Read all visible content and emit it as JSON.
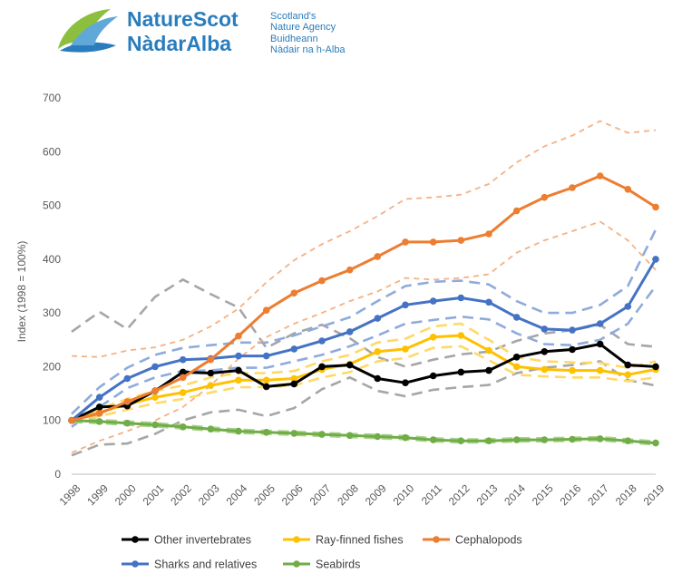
{
  "logo": {
    "name_en": "NatureScot",
    "name_gd": "NàdarAlba",
    "tag_en_1": "Scotland's",
    "tag_en_2": "Nature Agency",
    "tag_gd_1": "Buidheann",
    "tag_gd_2": "Nàdair na h-Alba",
    "colors": {
      "text": "#2a7dbd",
      "leaf_green": "#8dbf3e",
      "leaf_blue": "#2a7dbd"
    }
  },
  "chart_data": {
    "type": "line",
    "title": "",
    "xlabel": "",
    "ylabel": "Index (1998 = 100%)",
    "ylim": [
      0,
      700
    ],
    "yticks": [
      0,
      100,
      200,
      300,
      400,
      500,
      600,
      700
    ],
    "x": [
      "1998",
      "1999",
      "2000",
      "2001",
      "2002",
      "2003",
      "2004",
      "2005",
      "2006",
      "2007",
      "2008",
      "2009",
      "2010",
      "2011",
      "2012",
      "2013",
      "2014",
      "2015",
      "2016",
      "2017",
      "2018",
      "2019"
    ],
    "grid": false,
    "legend_position": "bottom",
    "series": [
      {
        "name": "Other invertebrates",
        "color": "#000000",
        "values": [
          100,
          125,
          127,
          155,
          190,
          188,
          193,
          163,
          168,
          200,
          203,
          178,
          170,
          183,
          190,
          193,
          218,
          228,
          232,
          242,
          203,
          200
        ],
        "ci_color": "#a6a6a6",
        "ci_upper": [
          265,
          302,
          270,
          330,
          362,
          335,
          310,
          235,
          262,
          278,
          253,
          218,
          200,
          213,
          223,
          228,
          248,
          262,
          268,
          278,
          242,
          237
        ],
        "ci_lower": [
          35,
          55,
          57,
          75,
          100,
          115,
          120,
          108,
          123,
          158,
          180,
          155,
          145,
          157,
          162,
          166,
          188,
          198,
          203,
          210,
          175,
          165
        ]
      },
      {
        "name": "Ray-finned fishes",
        "color": "#ffc000",
        "values": [
          100,
          115,
          130,
          143,
          152,
          165,
          175,
          175,
          178,
          195,
          205,
          228,
          233,
          255,
          258,
          230,
          200,
          195,
          193,
          193,
          185,
          195
        ],
        "ci_color": "#ffd966",
        "ci_upper": [
          103,
          122,
          140,
          155,
          165,
          180,
          188,
          188,
          192,
          210,
          222,
          245,
          252,
          275,
          280,
          250,
          218,
          210,
          208,
          207,
          198,
          210
        ],
        "ci_lower": [
          97,
          108,
          120,
          132,
          140,
          152,
          162,
          162,
          165,
          180,
          190,
          210,
          216,
          235,
          238,
          212,
          185,
          182,
          180,
          180,
          173,
          180
        ]
      },
      {
        "name": "Cephalopods",
        "color": "#ed7d31",
        "values": [
          100,
          113,
          135,
          155,
          180,
          213,
          257,
          305,
          337,
          360,
          380,
          405,
          432,
          432,
          435,
          447,
          490,
          515,
          533,
          555,
          530,
          497
        ],
        "ci_color": "#f4b183",
        "ci_upper": [
          220,
          218,
          230,
          236,
          250,
          275,
          308,
          357,
          398,
          428,
          452,
          480,
          512,
          515,
          520,
          540,
          580,
          610,
          630,
          657,
          635,
          640
        ],
        "ci_lower": [
          40,
          62,
          80,
          100,
          125,
          165,
          215,
          255,
          280,
          300,
          322,
          340,
          365,
          362,
          365,
          372,
          412,
          435,
          452,
          470,
          435,
          380
        ]
      },
      {
        "name": "Sharks and relatives",
        "color": "#4472c4",
        "values": [
          100,
          143,
          178,
          200,
          213,
          215,
          220,
          220,
          233,
          248,
          265,
          290,
          315,
          322,
          328,
          320,
          292,
          270,
          268,
          280,
          312,
          400
        ],
        "ci_color": "#8faadc",
        "ci_upper": [
          112,
          162,
          198,
          222,
          235,
          240,
          245,
          245,
          258,
          275,
          292,
          322,
          350,
          358,
          360,
          353,
          322,
          300,
          300,
          315,
          350,
          455
        ],
        "ci_lower": [
          88,
          125,
          160,
          180,
          192,
          193,
          198,
          198,
          210,
          222,
          238,
          258,
          280,
          287,
          293,
          288,
          262,
          242,
          240,
          250,
          280,
          350
        ]
      },
      {
        "name": "Seabirds",
        "color": "#70ad47",
        "values": [
          100,
          98,
          95,
          92,
          88,
          84,
          80,
          78,
          76,
          74,
          72,
          70,
          68,
          64,
          62,
          62,
          64,
          64,
          65,
          66,
          62,
          58
        ],
        "ci_color": "#a9d18e",
        "ci_upper": [
          103,
          101,
          98,
          95,
          91,
          87,
          83,
          81,
          79,
          77,
          75,
          73,
          71,
          67,
          65,
          65,
          67,
          67,
          68,
          69,
          65,
          61
        ],
        "ci_lower": [
          97,
          95,
          92,
          89,
          85,
          81,
          77,
          75,
          73,
          71,
          69,
          67,
          65,
          61,
          59,
          59,
          61,
          61,
          62,
          63,
          59,
          55
        ]
      }
    ]
  }
}
